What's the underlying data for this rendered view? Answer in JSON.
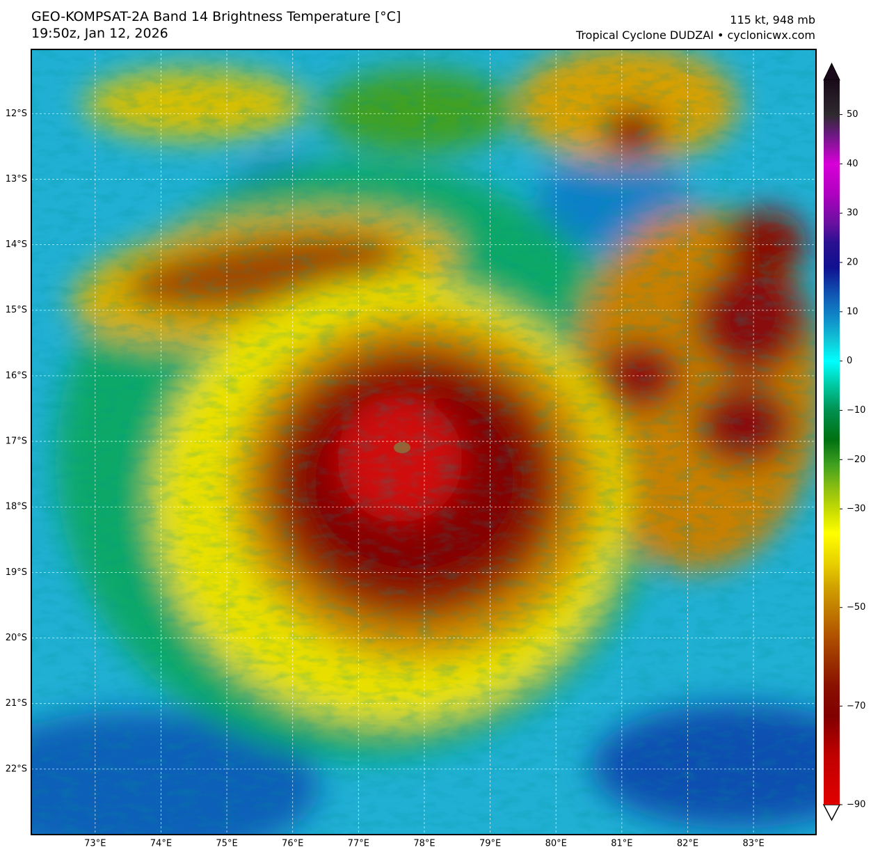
{
  "header": {
    "title": "GEO-KOMPSAT-2A Band 14 Brightness Temperature [°C]",
    "subtitle": "19:50z, Jan 12, 2026",
    "intensity": "115 kt, 948 mb",
    "source": "Tropical Cyclone DUDZAI • cyclonicwx.com"
  },
  "map": {
    "xlim": [
      72.03,
      83.95
    ],
    "ylim": [
      -23.0,
      -11.02
    ],
    "xticks": [
      {
        "value": 73,
        "label": "73°E"
      },
      {
        "value": 74,
        "label": "74°E"
      },
      {
        "value": 75,
        "label": "75°E"
      },
      {
        "value": 76,
        "label": "76°E"
      },
      {
        "value": 77,
        "label": "77°E"
      },
      {
        "value": 78,
        "label": "78°E"
      },
      {
        "value": 79,
        "label": "79°E"
      },
      {
        "value": 80,
        "label": "80°E"
      },
      {
        "value": 81,
        "label": "81°E"
      },
      {
        "value": 82,
        "label": "82°E"
      },
      {
        "value": 83,
        "label": "83°E"
      }
    ],
    "yticks": [
      {
        "value": -12,
        "label": "12°S"
      },
      {
        "value": -13,
        "label": "13°S"
      },
      {
        "value": -14,
        "label": "14°S"
      },
      {
        "value": -15,
        "label": "15°S"
      },
      {
        "value": -16,
        "label": "16°S"
      },
      {
        "value": -17,
        "label": "17°S"
      },
      {
        "value": -18,
        "label": "18°S"
      },
      {
        "value": -19,
        "label": "19°S"
      },
      {
        "value": -20,
        "label": "20°S"
      },
      {
        "value": -21,
        "label": "21°S"
      },
      {
        "value": -22,
        "label": "22°S"
      }
    ],
    "grid": true
  },
  "colorbar": {
    "clim": [
      -90,
      57
    ],
    "ticks": [
      50,
      40,
      30,
      20,
      10,
      0,
      {
        "value": -10,
        "label": "−10"
      },
      {
        "value": -20,
        "label": "−20"
      },
      {
        "value": -30,
        "label": "−30"
      },
      {
        "value": -50,
        "label": "−50"
      },
      {
        "value": -70,
        "label": "−70"
      },
      {
        "value": -90,
        "label": "−90"
      }
    ],
    "colormap": [
      {
        "value": 57,
        "color": "#1a0a1a"
      },
      {
        "value": 50,
        "color": "#2e2a2e"
      },
      {
        "value": 46,
        "color": "#6a1a80"
      },
      {
        "value": 40,
        "color": "#d800d8"
      },
      {
        "value": 34,
        "color": "#b000c0"
      },
      {
        "value": 28,
        "color": "#6a10a0"
      },
      {
        "value": 24,
        "color": "#2a1090"
      },
      {
        "value": 19,
        "color": "#101090"
      },
      {
        "value": 14,
        "color": "#1050b0"
      },
      {
        "value": 9,
        "color": "#1088c8"
      },
      {
        "value": 4,
        "color": "#10c8d8"
      },
      {
        "value": 0,
        "color": "#00ffff"
      },
      {
        "value": -5,
        "color": "#00c8a0"
      },
      {
        "value": -10,
        "color": "#009050"
      },
      {
        "value": -16,
        "color": "#007010"
      },
      {
        "value": -21,
        "color": "#40a020"
      },
      {
        "value": -26,
        "color": "#90c010"
      },
      {
        "value": -31,
        "color": "#d0e000"
      },
      {
        "value": -35,
        "color": "#ffff00"
      },
      {
        "value": -41,
        "color": "#e8d000"
      },
      {
        "value": -46,
        "color": "#d0a000"
      },
      {
        "value": -51,
        "color": "#c07800"
      },
      {
        "value": -56,
        "color": "#b05000"
      },
      {
        "value": -61,
        "color": "#9a3000"
      },
      {
        "value": -66,
        "color": "#8a1000"
      },
      {
        "value": -72,
        "color": "#800000"
      },
      {
        "value": -80,
        "color": "#c00000"
      },
      {
        "value": -90,
        "color": "#e00000"
      }
    ]
  }
}
